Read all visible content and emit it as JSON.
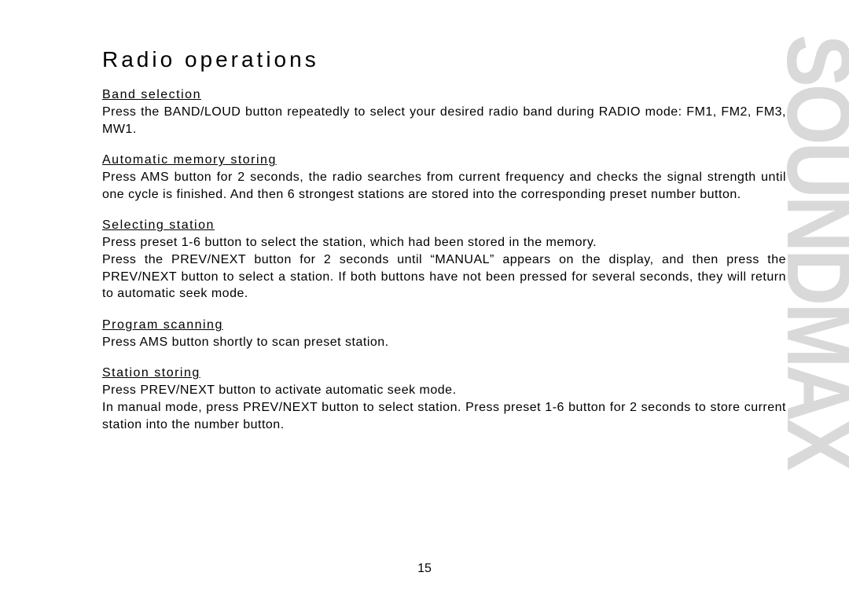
{
  "page": {
    "title": "Radio operations",
    "page_number": "15",
    "watermark": "SOUNDMAX",
    "colors": {
      "text": "#000000",
      "background": "#ffffff",
      "watermark": "#d9d9d9"
    },
    "typography": {
      "title_fontsize": 28,
      "title_letterspacing": 4,
      "heading_fontsize": 16,
      "body_fontsize": 16,
      "watermark_fontsize": 100,
      "watermark_weight": 900,
      "body_line_height": 1.35
    },
    "sections": [
      {
        "heading": "Band selection",
        "body": "Press the BAND/LOUD button repeatedly to select your desired radio band during RADIO mode: FM1, FM2, FM3, MW1.",
        "justify": true
      },
      {
        "heading": "Automatic memory storing",
        "body": "Press AMS button for 2 seconds, the radio searches from current frequency and checks the signal strength until one cycle is finished. And then 6 strongest stations are stored into the corresponding preset number button.",
        "justify": true
      },
      {
        "heading": "Selecting station",
        "body": "Press preset 1-6 button to select the station, which had been stored in the memory.\nPress the PREV/NEXT button for 2 seconds until “MANUAL” appears on the display, and then press the PREV/NEXT button to select a station. If both buttons have not been pressed for several seconds, they will return to automatic seek mode.",
        "justify": true
      },
      {
        "heading": "Program scanning",
        "body": "Press AMS button shortly to scan preset station.",
        "justify": false
      },
      {
        "heading": "Station storing",
        "body": "Press PREV/NEXT button to activate automatic seek mode.\nIn manual mode, press PREV/NEXT button to select station. Press preset 1-6 button for 2 seconds to store current station into the number button.",
        "justify": true
      }
    ]
  }
}
